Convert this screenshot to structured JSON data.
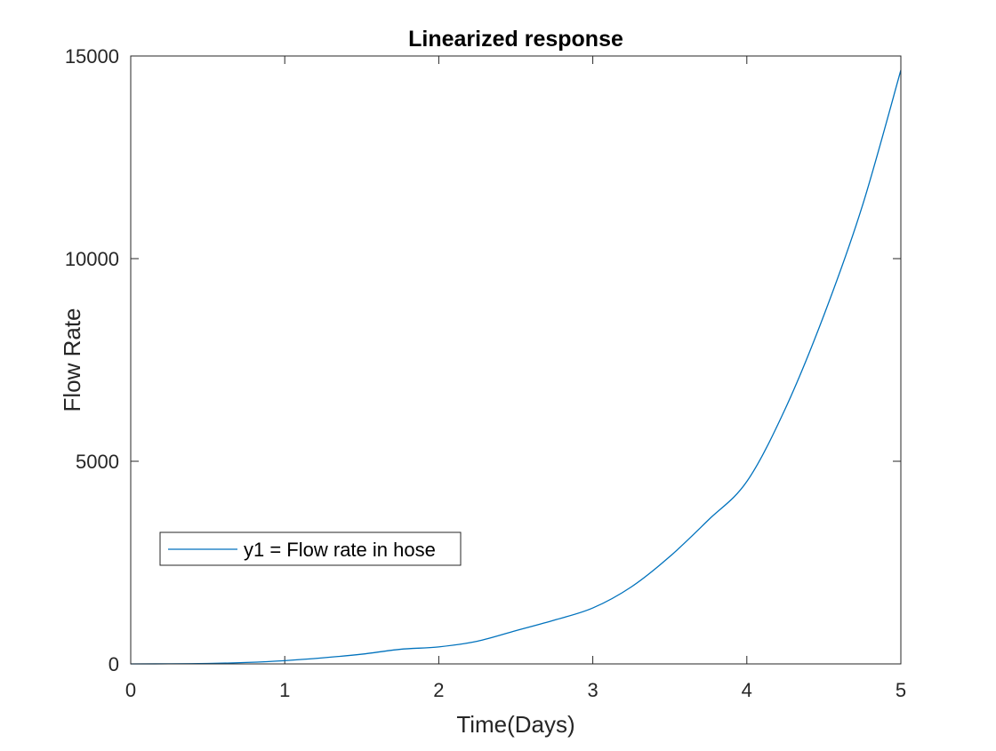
{
  "chart_data": {
    "type": "line",
    "title": "Linearized response",
    "xlabel": "Time(Days)",
    "ylabel": "Flow Rate",
    "xlim": [
      0,
      5
    ],
    "ylim": [
      0,
      15000
    ],
    "x_ticks": [
      0,
      1,
      2,
      3,
      4,
      5
    ],
    "x_tick_labels": [
      "0",
      "1",
      "2",
      "3",
      "4",
      "5"
    ],
    "y_ticks": [
      0,
      5000,
      10000,
      15000
    ],
    "y_tick_labels": [
      "0",
      "5000",
      "10000",
      "15000"
    ],
    "grid": false,
    "legend_position": "lower-left",
    "series": [
      {
        "name": "y1 = Flow rate in hose",
        "color": "#0072BD",
        "x": [
          0,
          0.25,
          0.5,
          0.75,
          1.0,
          1.25,
          1.5,
          1.75,
          2.0,
          2.25,
          2.5,
          2.75,
          3.0,
          3.25,
          3.5,
          3.75,
          4.0,
          4.25,
          4.5,
          4.75,
          5.0
        ],
        "y": [
          0,
          2,
          10,
          35,
          80,
          150,
          240,
          360,
          420,
          560,
          820,
          1080,
          1380,
          1900,
          2650,
          3550,
          4500,
          6300,
          8600,
          11300,
          14650
        ]
      }
    ]
  }
}
